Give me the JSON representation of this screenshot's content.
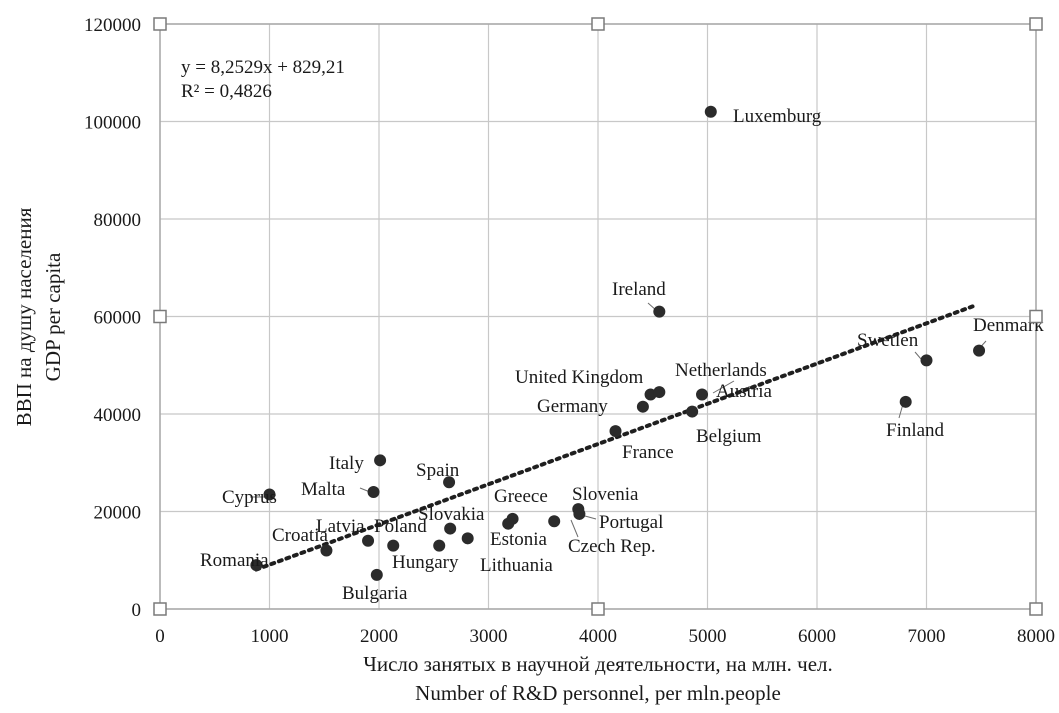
{
  "chart_data": {
    "type": "scatter",
    "xlabel": [
      "Число занятых в научной деятельности, на млн. чел.",
      "Number of R&D personnel, per mln.people"
    ],
    "ylabel": [
      "ВВП на душу населения",
      "GDP per capita"
    ],
    "xlim": [
      0,
      8000
    ],
    "ylim": [
      0,
      120000
    ],
    "xticks": [
      0,
      1000,
      2000,
      3000,
      4000,
      5000,
      6000,
      7000,
      8000
    ],
    "yticks": [
      0,
      20000,
      40000,
      60000,
      80000,
      100000,
      120000
    ],
    "grid": true,
    "trendline": {
      "type": "linear",
      "equation": "y = 8,2529x + 829,21",
      "r_squared": "R² = 0,4826",
      "slope": 8.2529,
      "intercept": 829.21,
      "x_range": [
        880,
        7450
      ]
    },
    "points": [
      {
        "label": "Luxemburg",
        "x": 5030,
        "y": 102000
      },
      {
        "label": "Ireland",
        "x": 4560,
        "y": 61000
      },
      {
        "label": "Denmark",
        "x": 7480,
        "y": 53000
      },
      {
        "label": "Swetlen",
        "x": 7000,
        "y": 51000
      },
      {
        "label": "Finland",
        "x": 6810,
        "y": 42500
      },
      {
        "label": "United Kingdom",
        "x": 4480,
        "y": 44000
      },
      {
        "label": "Netherlands",
        "x": 4950,
        "y": 44000
      },
      {
        "label": "Austria",
        "x": 4560,
        "y": 44500
      },
      {
        "label": "Germany",
        "x": 4410,
        "y": 41500
      },
      {
        "label": "Belgium",
        "x": 4860,
        "y": 40500
      },
      {
        "label": "France",
        "x": 4160,
        "y": 36500
      },
      {
        "label": "Italy",
        "x": 2010,
        "y": 30500
      },
      {
        "label": "Spain",
        "x": 2640,
        "y": 26000
      },
      {
        "label": "Malta",
        "x": 1950,
        "y": 24000
      },
      {
        "label": "Cyprus",
        "x": 1000,
        "y": 23500
      },
      {
        "label": "Greece",
        "x": 3220,
        "y": 18500
      },
      {
        "label": "Slovenia",
        "x": 3820,
        "y": 20500
      },
      {
        "label": "Portugal",
        "x": 3830,
        "y": 19500
      },
      {
        "label": "Czech Rep.",
        "x": 3600,
        "y": 18000
      },
      {
        "label": "Estonia",
        "x": 3180,
        "y": 17500
      },
      {
        "label": "Slovakia",
        "x": 2650,
        "y": 16500
      },
      {
        "label": "Lithuania",
        "x": 2810,
        "y": 14500
      },
      {
        "label": "Latvia",
        "x": 1900,
        "y": 14000
      },
      {
        "label": "Poland",
        "x": 2130,
        "y": 13000
      },
      {
        "label": "Hungary",
        "x": 2550,
        "y": 13000
      },
      {
        "label": "Croatia",
        "x": 1520,
        "y": 12000
      },
      {
        "label": "Romania",
        "x": 880,
        "y": 9000
      },
      {
        "label": "Bulgaria",
        "x": 1980,
        "y": 7000
      }
    ]
  }
}
